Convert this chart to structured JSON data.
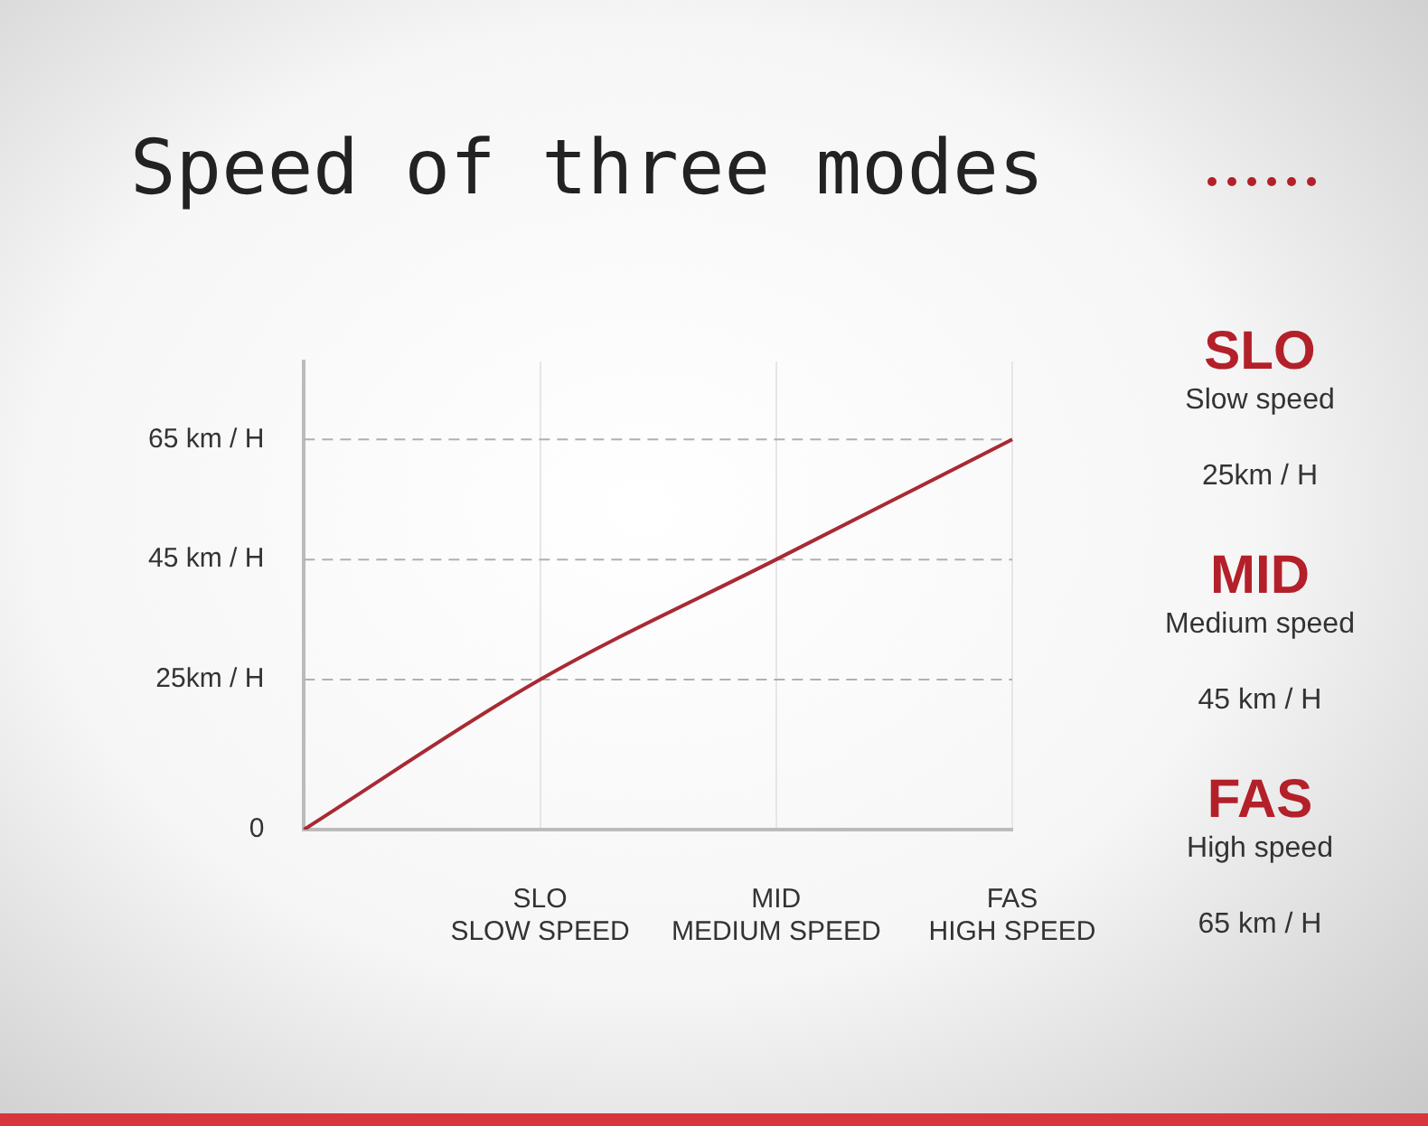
{
  "chart_data": {
    "type": "line",
    "title": "Speed of three modes",
    "categories": [
      null,
      "SLO\nSLOW SPEED",
      "MID\nMEDIUM SPEED",
      "FAS\nHIGH SPEED"
    ],
    "series": [
      {
        "color": "#a82a33",
        "values": [
          0,
          25,
          45,
          65
        ]
      }
    ],
    "ylim": [
      0,
      78
    ],
    "yticks": [
      {
        "value": 0,
        "label": "0"
      },
      {
        "value": 25,
        "label": "25km / H"
      },
      {
        "value": 45,
        "label": "45 km / H"
      },
      {
        "value": 65,
        "label": "65 km / H"
      }
    ],
    "ref_lines": [
      {
        "axis": "y",
        "value": 25,
        "color": "#b0b0b0",
        "line_style": "dashed"
      },
      {
        "axis": "y",
        "value": 45,
        "color": "#b0b0b0",
        "line_style": "dashed"
      },
      {
        "axis": "y",
        "value": 65,
        "color": "#b0b0b0",
        "line_style": "dashed"
      }
    ],
    "grid": "x",
    "legend": false,
    "marker": "none",
    "line_style": "solid",
    "annotations": [
      "SLO",
      "Slow speed",
      "25km / H",
      "MID",
      "Medium speed",
      "45 km / H",
      "FAS",
      "High speed",
      "65 km / H"
    ]
  }
}
